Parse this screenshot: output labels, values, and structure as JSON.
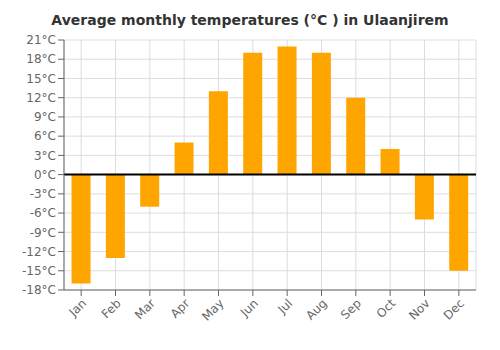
{
  "chart_data": {
    "type": "bar",
    "title": "Average monthly temperatures (°C ) in Ulaanjirem",
    "categories": [
      "Jan",
      "Feb",
      "Mar",
      "Apr",
      "May",
      "Jun",
      "Jul",
      "Aug",
      "Sep",
      "Oct",
      "Nov",
      "Dec"
    ],
    "values": [
      -17,
      -13,
      -5,
      5,
      13,
      19,
      20,
      19,
      12,
      4,
      -7,
      -15
    ],
    "color": "#FFA500",
    "ylim": [
      -18,
      21
    ],
    "yticks": [
      {
        "value": -18,
        "label": "-18°C"
      },
      {
        "value": -15,
        "label": "-15°C"
      },
      {
        "value": -12,
        "label": "-12°C"
      },
      {
        "value": -9,
        "label": "-9°C"
      },
      {
        "value": -6,
        "label": "-6°C"
      },
      {
        "value": -3,
        "label": "-3°C"
      },
      {
        "value": 0,
        "label": "0°C"
      },
      {
        "value": 3,
        "label": "3°C"
      },
      {
        "value": 6,
        "label": "6°C"
      },
      {
        "value": 9,
        "label": "9°C"
      },
      {
        "value": 12,
        "label": "12°C"
      },
      {
        "value": 15,
        "label": "15°C"
      },
      {
        "value": 18,
        "label": "18°C"
      },
      {
        "value": 21,
        "label": "21°C"
      }
    ],
    "grid": true
  }
}
